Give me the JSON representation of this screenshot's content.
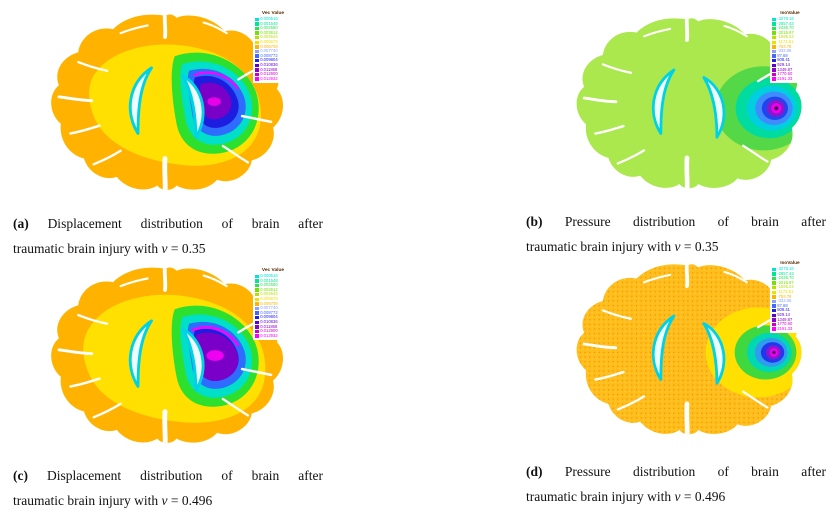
{
  "figure": {
    "panels": [
      {
        "id": "a",
        "label": "(a)",
        "line1": "Displacement distribution of brain after",
        "line2": "traumatic brain injury with",
        "nu": "ν",
        "value": "= 0.35",
        "legend": "vec"
      },
      {
        "id": "b",
        "label": "(b)",
        "line1": "Pressure distribution of brain after",
        "line2": "traumatic brain injury with",
        "nu": "ν",
        "value": "= 0.35",
        "legend": "iso"
      },
      {
        "id": "c",
        "label": "(c)",
        "line1": "Displacement distribution of brain after",
        "line2": "traumatic brain injury with",
        "nu": "ν",
        "value": "= 0.496",
        "legend": "vec"
      },
      {
        "id": "d",
        "label": "(d)",
        "line1": "Pressure distribution of brain after",
        "line2": "traumatic brain injury with",
        "nu": "ν",
        "value": "= 0.496",
        "legend": "iso"
      }
    ]
  },
  "legends": {
    "vec": {
      "title": "Vec Value",
      "items": [
        {
          "color": "#00e6d2",
          "label": "0.000516"
        },
        {
          "color": "#00e696",
          "label": "0.001548"
        },
        {
          "color": "#2ce256",
          "label": "0.002580"
        },
        {
          "color": "#74e200",
          "label": "0.003612"
        },
        {
          "color": "#b6e200",
          "label": "0.004644"
        },
        {
          "color": "#f0e000",
          "label": "0.005676"
        },
        {
          "color": "#ffb400",
          "label": "0.006708"
        },
        {
          "color": "#8aa2ff",
          "label": "0.007740"
        },
        {
          "color": "#4468ff",
          "label": "0.008772"
        },
        {
          "color": "#2020e6",
          "label": "0.009804"
        },
        {
          "color": "#5c00d2",
          "label": "0.010836"
        },
        {
          "color": "#9000cc",
          "label": "0.011868"
        },
        {
          "color": "#cc00cc",
          "label": "0.012900"
        },
        {
          "color": "#ff00ff",
          "label": "0.013932"
        }
      ]
    },
    "iso": {
      "title": "IsoValue",
      "items": [
        {
          "color": "#00e6d2",
          "label": "-3278.16"
        },
        {
          "color": "#00e696",
          "label": "-2857.43"
        },
        {
          "color": "#2ce256",
          "label": "-2436.70"
        },
        {
          "color": "#74e200",
          "label": "-2015.97"
        },
        {
          "color": "#b6e200",
          "label": "-1595.24"
        },
        {
          "color": "#f0e000",
          "label": "-1174.51"
        },
        {
          "color": "#ffb400",
          "label": "-753.78"
        },
        {
          "color": "#8aa2ff",
          "label": "-333.05"
        },
        {
          "color": "#4468ff",
          "label": "87.68"
        },
        {
          "color": "#2020e6",
          "label": "508.41"
        },
        {
          "color": "#5c00d2",
          "label": "929.14"
        },
        {
          "color": "#9000cc",
          "label": "1349.87"
        },
        {
          "color": "#cc00cc",
          "label": "1770.60"
        },
        {
          "color": "#ff00ff",
          "label": "2191.33"
        }
      ]
    }
  },
  "colors": {
    "brain_warm": "#ffb300",
    "brain_cool_green": "#abe84d",
    "halo_yellow": "#ffe000",
    "contour_green": "#2ee02e",
    "contour_cyan": "#00e0c8",
    "contour_blue": "#2e6bff",
    "contour_indigo": "#1d1de0",
    "contour_purple": "#7a00c8",
    "contour_magenta": "#ff00ff",
    "ventricle_fill": "#eefcff",
    "ventricle_edge": "#00d2e6"
  }
}
